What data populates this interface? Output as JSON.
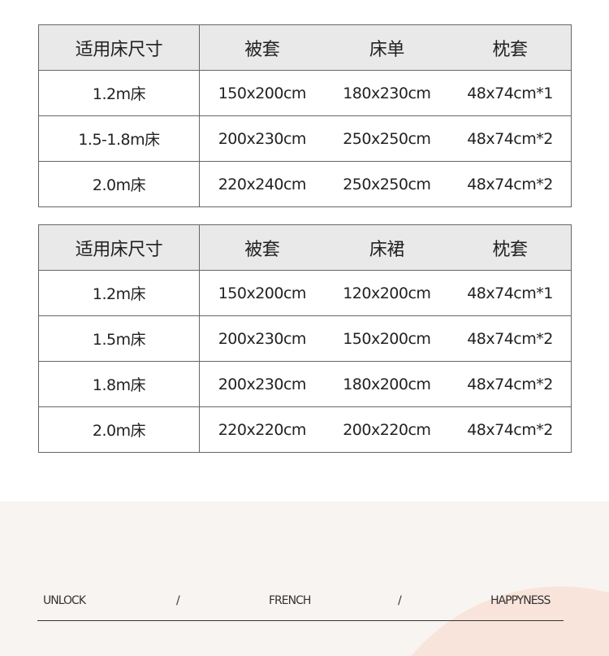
{
  "table1": {
    "headers": [
      "适用床尺寸",
      "被套",
      "床单",
      "枕套"
    ],
    "rows": [
      [
        "1.2m床",
        "150x200cm",
        "180x230cm",
        "48x74cm*1"
      ],
      [
        "1.5-1.8m床",
        "200x230cm",
        "250x250cm",
        "48x74cm*2"
      ],
      [
        "2.0m床",
        "220x240cm",
        "250x250cm",
        "48x74cm*2"
      ]
    ]
  },
  "table2": {
    "headers": [
      "适用床尺寸",
      "被套",
      "床裙",
      "枕套"
    ],
    "rows": [
      [
        "1.2m床",
        "150x200cm",
        "120x200cm",
        "48x74cm*1"
      ],
      [
        "1.5m床",
        "200x230cm",
        "150x200cm",
        "48x74cm*2"
      ],
      [
        "1.8m床",
        "200x230cm",
        "180x200cm",
        "48x74cm*2"
      ],
      [
        "2.0m床",
        "220x220cm",
        "200x220cm",
        "48x74cm*2"
      ]
    ]
  },
  "footer": {
    "words": [
      "UNLOCK",
      "/",
      "FRENCH",
      "/",
      "HAPPYNESS"
    ],
    "bg": "#f8f4f1",
    "accent": "#f8e4da"
  }
}
